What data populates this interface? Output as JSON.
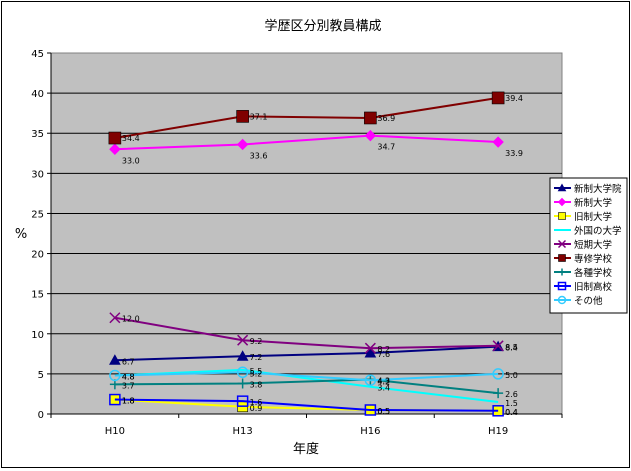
{
  "chart_data": {
    "type": "line",
    "title": "学歴区分別教員構成",
    "xlabel": "年度",
    "ylabel": "%",
    "ylim": [
      0,
      45
    ],
    "yticks": [
      "0",
      "5",
      "10",
      "15",
      "20",
      "25",
      "30",
      "35",
      "40",
      "45"
    ],
    "categories": [
      "H10",
      "H13",
      "H16",
      "H19"
    ],
    "grid": true,
    "legend_position": "right",
    "series": [
      {
        "name": "新制大学院",
        "color": "#000080",
        "marker": "triangle",
        "values": [
          6.7,
          7.2,
          7.6,
          8.4
        ],
        "labels": [
          "6.7",
          "7.2",
          "7.6",
          "8.4"
        ]
      },
      {
        "name": "新制大学",
        "color": "#FF00FF",
        "marker": "diamond",
        "values": [
          33.0,
          33.6,
          34.7,
          33.9
        ],
        "labels": [
          "33.0",
          "33.6",
          "34.7",
          "33.9"
        ]
      },
      {
        "name": "旧制大学",
        "color": "#FFFF00",
        "marker": "square",
        "values": [
          1.8,
          0.9,
          0.5,
          0.4
        ],
        "labels": [
          "1.8",
          "0.9",
          "0.5",
          "0.4"
        ]
      },
      {
        "name": "外国の大学",
        "color": "#00FFFF",
        "marker": "none",
        "values": [
          4.8,
          5.5,
          3.4,
          1.5
        ],
        "labels": [
          "4.8",
          "5.5",
          "3.4",
          "1.5"
        ]
      },
      {
        "name": "短期大学",
        "color": "#800080",
        "marker": "x",
        "values": [
          12.0,
          9.2,
          8.2,
          8.5
        ],
        "labels": [
          "12.0",
          "9.2",
          "8.2",
          "8.5"
        ]
      },
      {
        "name": "専修学校",
        "color": "#800000",
        "marker": "square",
        "values": [
          34.4,
          37.1,
          36.9,
          39.4
        ],
        "labels": [
          "34.4",
          "37.1",
          "36.9",
          "39.4"
        ]
      },
      {
        "name": "各種学校",
        "color": "#008080",
        "marker": "plus",
        "values": [
          3.7,
          3.8,
          4.3,
          2.6
        ],
        "labels": [
          "3.7",
          "3.8",
          "4.3",
          "2.6"
        ]
      },
      {
        "name": "旧制高校",
        "color": "#0000FF",
        "marker": "square-open",
        "values": [
          1.8,
          1.6,
          0.5,
          0.4
        ],
        "labels": [
          "1.8",
          "1.6",
          "0.5",
          "0.4"
        ]
      },
      {
        "name": "その他",
        "color": "#33CCFF",
        "marker": "circle-open",
        "values": [
          4.8,
          5.2,
          4.2,
          5.0
        ],
        "labels": [
          "4.8",
          "5.2",
          "4.2",
          "5.0"
        ]
      }
    ]
  }
}
